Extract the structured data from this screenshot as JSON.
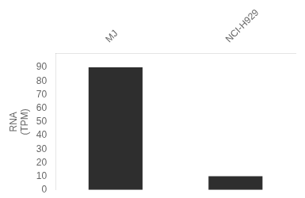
{
  "chart_data": {
    "type": "bar",
    "y_label": "RNA\n(TPM)",
    "categories": [
      "MJ",
      "NCI-H929"
    ],
    "values": [
      90,
      10
    ],
    "color": "#2e2e2e",
    "ylim": [
      0,
      100
    ],
    "yticks": [
      0,
      10,
      20,
      30,
      40,
      50,
      60,
      70,
      80,
      90
    ],
    "grid": false
  }
}
